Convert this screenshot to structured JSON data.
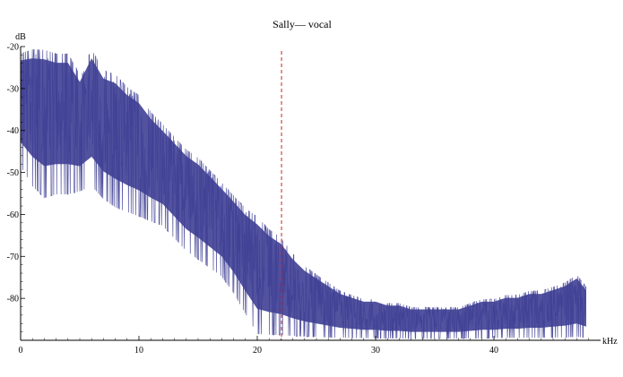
{
  "chart_data": {
    "type": "line",
    "title": "Sally— vocal",
    "xlabel": "kHz",
    "ylabel": "dB",
    "xlim": [
      0,
      48
    ],
    "ylim": [
      -90,
      -20
    ],
    "x_ticks": [
      0,
      10,
      20,
      30,
      40
    ],
    "y_ticks": [
      -20,
      -30,
      -40,
      -50,
      -60,
      -70,
      -80
    ],
    "grid": false,
    "reference_line": {
      "x": 22.05,
      "style": "dashed",
      "color": "#cc2222"
    },
    "series": [
      {
        "color": "#3f3f95",
        "envelope": {
          "x": [
            0,
            1,
            2,
            3,
            4,
            5,
            6,
            7,
            8,
            9,
            10,
            11,
            12,
            13,
            14,
            15,
            16,
            17,
            18,
            19,
            20,
            21,
            22,
            23,
            24,
            25,
            26,
            27,
            28,
            29,
            30,
            31,
            32,
            33,
            34,
            35,
            36,
            37,
            38,
            39,
            40,
            41,
            42,
            43,
            44,
            45,
            46,
            47,
            47.8
          ],
          "upper": [
            -21,
            -20,
            -20,
            -21,
            -21,
            -26,
            -20,
            -25,
            -26,
            -29,
            -31,
            -35,
            -38,
            -41,
            -44,
            -46,
            -49,
            -52,
            -55,
            -58,
            -60,
            -63,
            -65,
            -69,
            -72,
            -74,
            -76,
            -78,
            -79,
            -80,
            -80,
            -81,
            -81,
            -82,
            -82,
            -82,
            -82,
            -82,
            -81,
            -80,
            -80,
            -79,
            -79,
            -78,
            -78,
            -77,
            -76,
            -74,
            -77
          ],
          "lower": [
            -50,
            -55,
            -58,
            -57,
            -57,
            -56,
            -55,
            -58,
            -60,
            -61,
            -62,
            -63,
            -64,
            -67,
            -70,
            -72,
            -74,
            -76,
            -80,
            -85,
            -90,
            -90,
            -90,
            -90,
            -90,
            -90,
            -90,
            -90,
            -90,
            -90,
            -90,
            -90,
            -90,
            -90,
            -90,
            -90,
            -90,
            -90,
            -90,
            -90,
            -90,
            -90,
            -90,
            -90,
            -90,
            -90,
            -90,
            -90,
            -90
          ]
        }
      }
    ]
  }
}
